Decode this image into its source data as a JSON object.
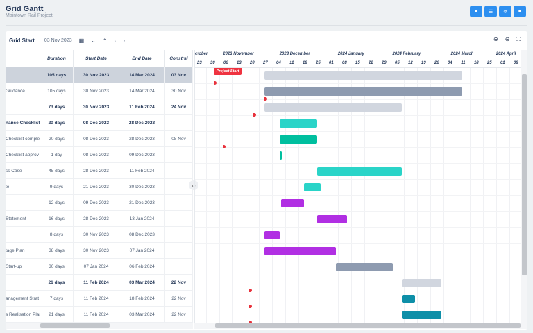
{
  "header": {
    "title": "Grid Gantt",
    "subtitle": "Maintown Rail Project",
    "buttons": [
      {
        "icon": "info-icon",
        "glyph": "●"
      },
      {
        "icon": "list-icon",
        "glyph": "☰"
      },
      {
        "icon": "undo-icon",
        "glyph": "↺"
      },
      {
        "icon": "stop-icon",
        "glyph": "■"
      }
    ]
  },
  "toolbar": {
    "label": "Grid Start",
    "date": "03 Nov 2023",
    "icons": [
      {
        "name": "calendar-icon",
        "glyph": "▦"
      },
      {
        "name": "expand-all-icon",
        "glyph": "⌄"
      },
      {
        "name": "collapse-all-icon",
        "glyph": "⌃"
      },
      {
        "name": "previous-icon",
        "glyph": "‹"
      },
      {
        "name": "next-icon",
        "glyph": "›"
      }
    ],
    "right": [
      {
        "name": "zoom-in-icon",
        "glyph": "⊕"
      },
      {
        "name": "zoom-out-icon",
        "glyph": "⊖"
      },
      {
        "name": "fit-icon",
        "glyph": "⛶"
      }
    ]
  },
  "columns": [
    "",
    "Duration",
    "Start Date",
    "End Date",
    "Constrai"
  ],
  "timeline": {
    "months": [
      {
        "label": "ctober",
        "date": "2023-10-18"
      },
      {
        "label": "2023 November",
        "date": "2023-11-08"
      },
      {
        "label": "2023 December",
        "date": "2023-12-08"
      },
      {
        "label": "2024 January",
        "date": "2024-01-08"
      },
      {
        "label": "2024 February",
        "date": "2024-02-06"
      },
      {
        "label": "2024 March",
        "date": "2024-03-08"
      },
      {
        "label": "2024 April",
        "date": "2024-04-01"
      }
    ],
    "weeks": [
      "23",
      "30",
      "06",
      "13",
      "20",
      "27",
      "04",
      "11",
      "18",
      "25",
      "01",
      "08",
      "15",
      "22",
      "29",
      "05",
      "12",
      "19",
      "26",
      "04",
      "11",
      "18",
      "25",
      "01",
      "08"
    ],
    "first_week": "2023-10-23",
    "project_start_label": "Project Start",
    "project_start": "2023-11-03"
  },
  "rows": [
    {
      "name": "",
      "duration": "105 days",
      "start": "30 Nov 2023",
      "end": "14 Mar 2024",
      "constraint": "03 Nov",
      "bold": true,
      "selected": true,
      "s": "2023-11-30",
      "e": "2024-03-14",
      "c": "2023-11-03",
      "color": "#d1d6df"
    },
    {
      "name": "Guidance",
      "duration": "105 days",
      "start": "30 Nov 2023",
      "end": "14 Mar 2024",
      "constraint": "30 Nov",
      "s": "2023-11-30",
      "e": "2024-03-14",
      "c": "2023-11-30",
      "color": "#8e9bb0"
    },
    {
      "name": "",
      "duration": "73 days",
      "start": "30 Nov 2023",
      "end": "11 Feb 2024",
      "constraint": "24 Nov",
      "bold": true,
      "s": "2023-11-30",
      "e": "2024-02-11",
      "c": "2023-11-24",
      "color": "#d1d6df"
    },
    {
      "name": "nance Checklist",
      "duration": "20 days",
      "start": "08 Dec 2023",
      "end": "28 Dec 2023",
      "constraint": "",
      "bold": true,
      "s": "2023-12-08",
      "e": "2023-12-28",
      "color": "#2ad4c8"
    },
    {
      "name": "Checklist comple",
      "duration": "20 days",
      "start": "08 Dec 2023",
      "end": "28 Dec 2023",
      "constraint": "08 Nov",
      "s": "2023-12-08",
      "e": "2023-12-28",
      "c": "2023-11-08",
      "color": "#00bf9f"
    },
    {
      "name": "Checklist approv",
      "duration": "1 day",
      "start": "08 Dec 2023",
      "end": "09 Dec 2023",
      "constraint": "",
      "s": "2023-12-08",
      "e": "2023-12-09",
      "color": "#00bf9f"
    },
    {
      "name": "ss Case",
      "duration": "45 days",
      "start": "28 Dec 2023",
      "end": "11 Feb 2024",
      "constraint": "",
      "s": "2023-12-28",
      "e": "2024-02-11",
      "color": "#2ad4c8"
    },
    {
      "name": "te",
      "duration": "9 days",
      "start": "21 Dec 2023",
      "end": "30 Dec 2023",
      "constraint": "",
      "s": "2023-12-21",
      "e": "2023-12-30",
      "color": "#2ad4c8"
    },
    {
      "name": "",
      "duration": "12 days",
      "start": "09 Dec 2023",
      "end": "21 Dec 2023",
      "constraint": "",
      "s": "2023-12-09",
      "e": "2023-12-21",
      "color": "#b12fe3"
    },
    {
      "name": "Statement",
      "duration": "16 days",
      "start": "28 Dec 2023",
      "end": "13 Jan 2024",
      "constraint": "",
      "s": "2023-12-28",
      "e": "2024-01-13",
      "color": "#b12fe3"
    },
    {
      "name": "",
      "duration": "8 days",
      "start": "30 Nov 2023",
      "end": "08 Dec 2023",
      "constraint": "",
      "s": "2023-11-30",
      "e": "2023-12-08",
      "color": "#b12fe3"
    },
    {
      "name": "tage Plan",
      "duration": "38 days",
      "start": "30 Nov 2023",
      "end": "07 Jan 2024",
      "constraint": "",
      "s": "2023-11-30",
      "e": "2024-01-07",
      "color": "#b12fe3"
    },
    {
      "name": "Start-up",
      "duration": "30 days",
      "start": "07 Jan 2024",
      "end": "06 Feb 2024",
      "constraint": "",
      "s": "2024-01-07",
      "e": "2024-02-06",
      "color": "#8e9bb0"
    },
    {
      "name": "",
      "duration": "21 days",
      "start": "11 Feb 2024",
      "end": "03 Mar 2024",
      "constraint": "22 Nov",
      "bold": true,
      "s": "2024-02-11",
      "e": "2024-03-03",
      "c": "2023-11-22",
      "color": "#d1d6df"
    },
    {
      "name": "anagement Strat",
      "duration": "7 days",
      "start": "11 Feb 2024",
      "end": "18 Feb 2024",
      "constraint": "22 Nov",
      "s": "2024-02-11",
      "e": "2024-02-18",
      "c": "2023-11-22",
      "color": "#0e8fa8"
    },
    {
      "name": "s Realisation Plar",
      "duration": "21 days",
      "start": "11 Feb 2024",
      "end": "03 Mar 2024",
      "constraint": "22 Nov",
      "s": "2024-02-11",
      "e": "2024-03-03",
      "c": "2023-11-22",
      "color": "#0e8fa8"
    }
  ]
}
